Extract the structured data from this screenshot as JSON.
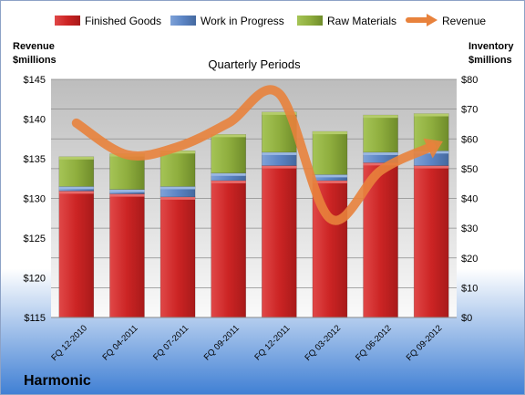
{
  "chart_data": {
    "type": "bar",
    "subtitle": "Quarterly Periods",
    "company": "Harmonic",
    "left_axis": {
      "label_line1": "Revenue",
      "label_line2": "$millions",
      "min": 115,
      "max": 145,
      "step": 5,
      "prefix": "$"
    },
    "right_axis": {
      "label_line1": "Inventory",
      "label_line2": "$millions",
      "min": 0,
      "max": 80,
      "step": 10,
      "prefix": "$"
    },
    "categories": [
      "FQ 12-2010",
      "FQ 04-2011",
      "FQ 07-2011",
      "FQ 09-2011",
      "FQ 12-2011",
      "FQ 03-2012",
      "FQ 06-2012",
      "FQ 09-2012"
    ],
    "series": [
      {
        "name": "Finished Goods",
        "axis": "right",
        "stack": true,
        "color": "#d42a2a",
        "values": [
          42.5,
          41.5,
          40.5,
          46,
          51,
          46,
          52,
          51
        ]
      },
      {
        "name": "Work in Progress",
        "axis": "right",
        "stack": true,
        "color": "#5b84c4",
        "values": [
          1.5,
          1.5,
          3.5,
          2.5,
          4.5,
          2,
          3.5,
          5
        ]
      },
      {
        "name": "Raw Materials",
        "axis": "right",
        "stack": true,
        "color": "#8fae3e",
        "values": [
          10,
          12,
          12,
          13,
          13.5,
          14.5,
          12.5,
          12.5
        ]
      },
      {
        "name": "Revenue",
        "axis": "left",
        "type": "line",
        "color": "#e8823c",
        "values": [
          139.5,
          135.5,
          136.5,
          139.5,
          143.2,
          127.5,
          133.5,
          136.5
        ]
      }
    ],
    "legend_position": "top",
    "grid": true
  }
}
